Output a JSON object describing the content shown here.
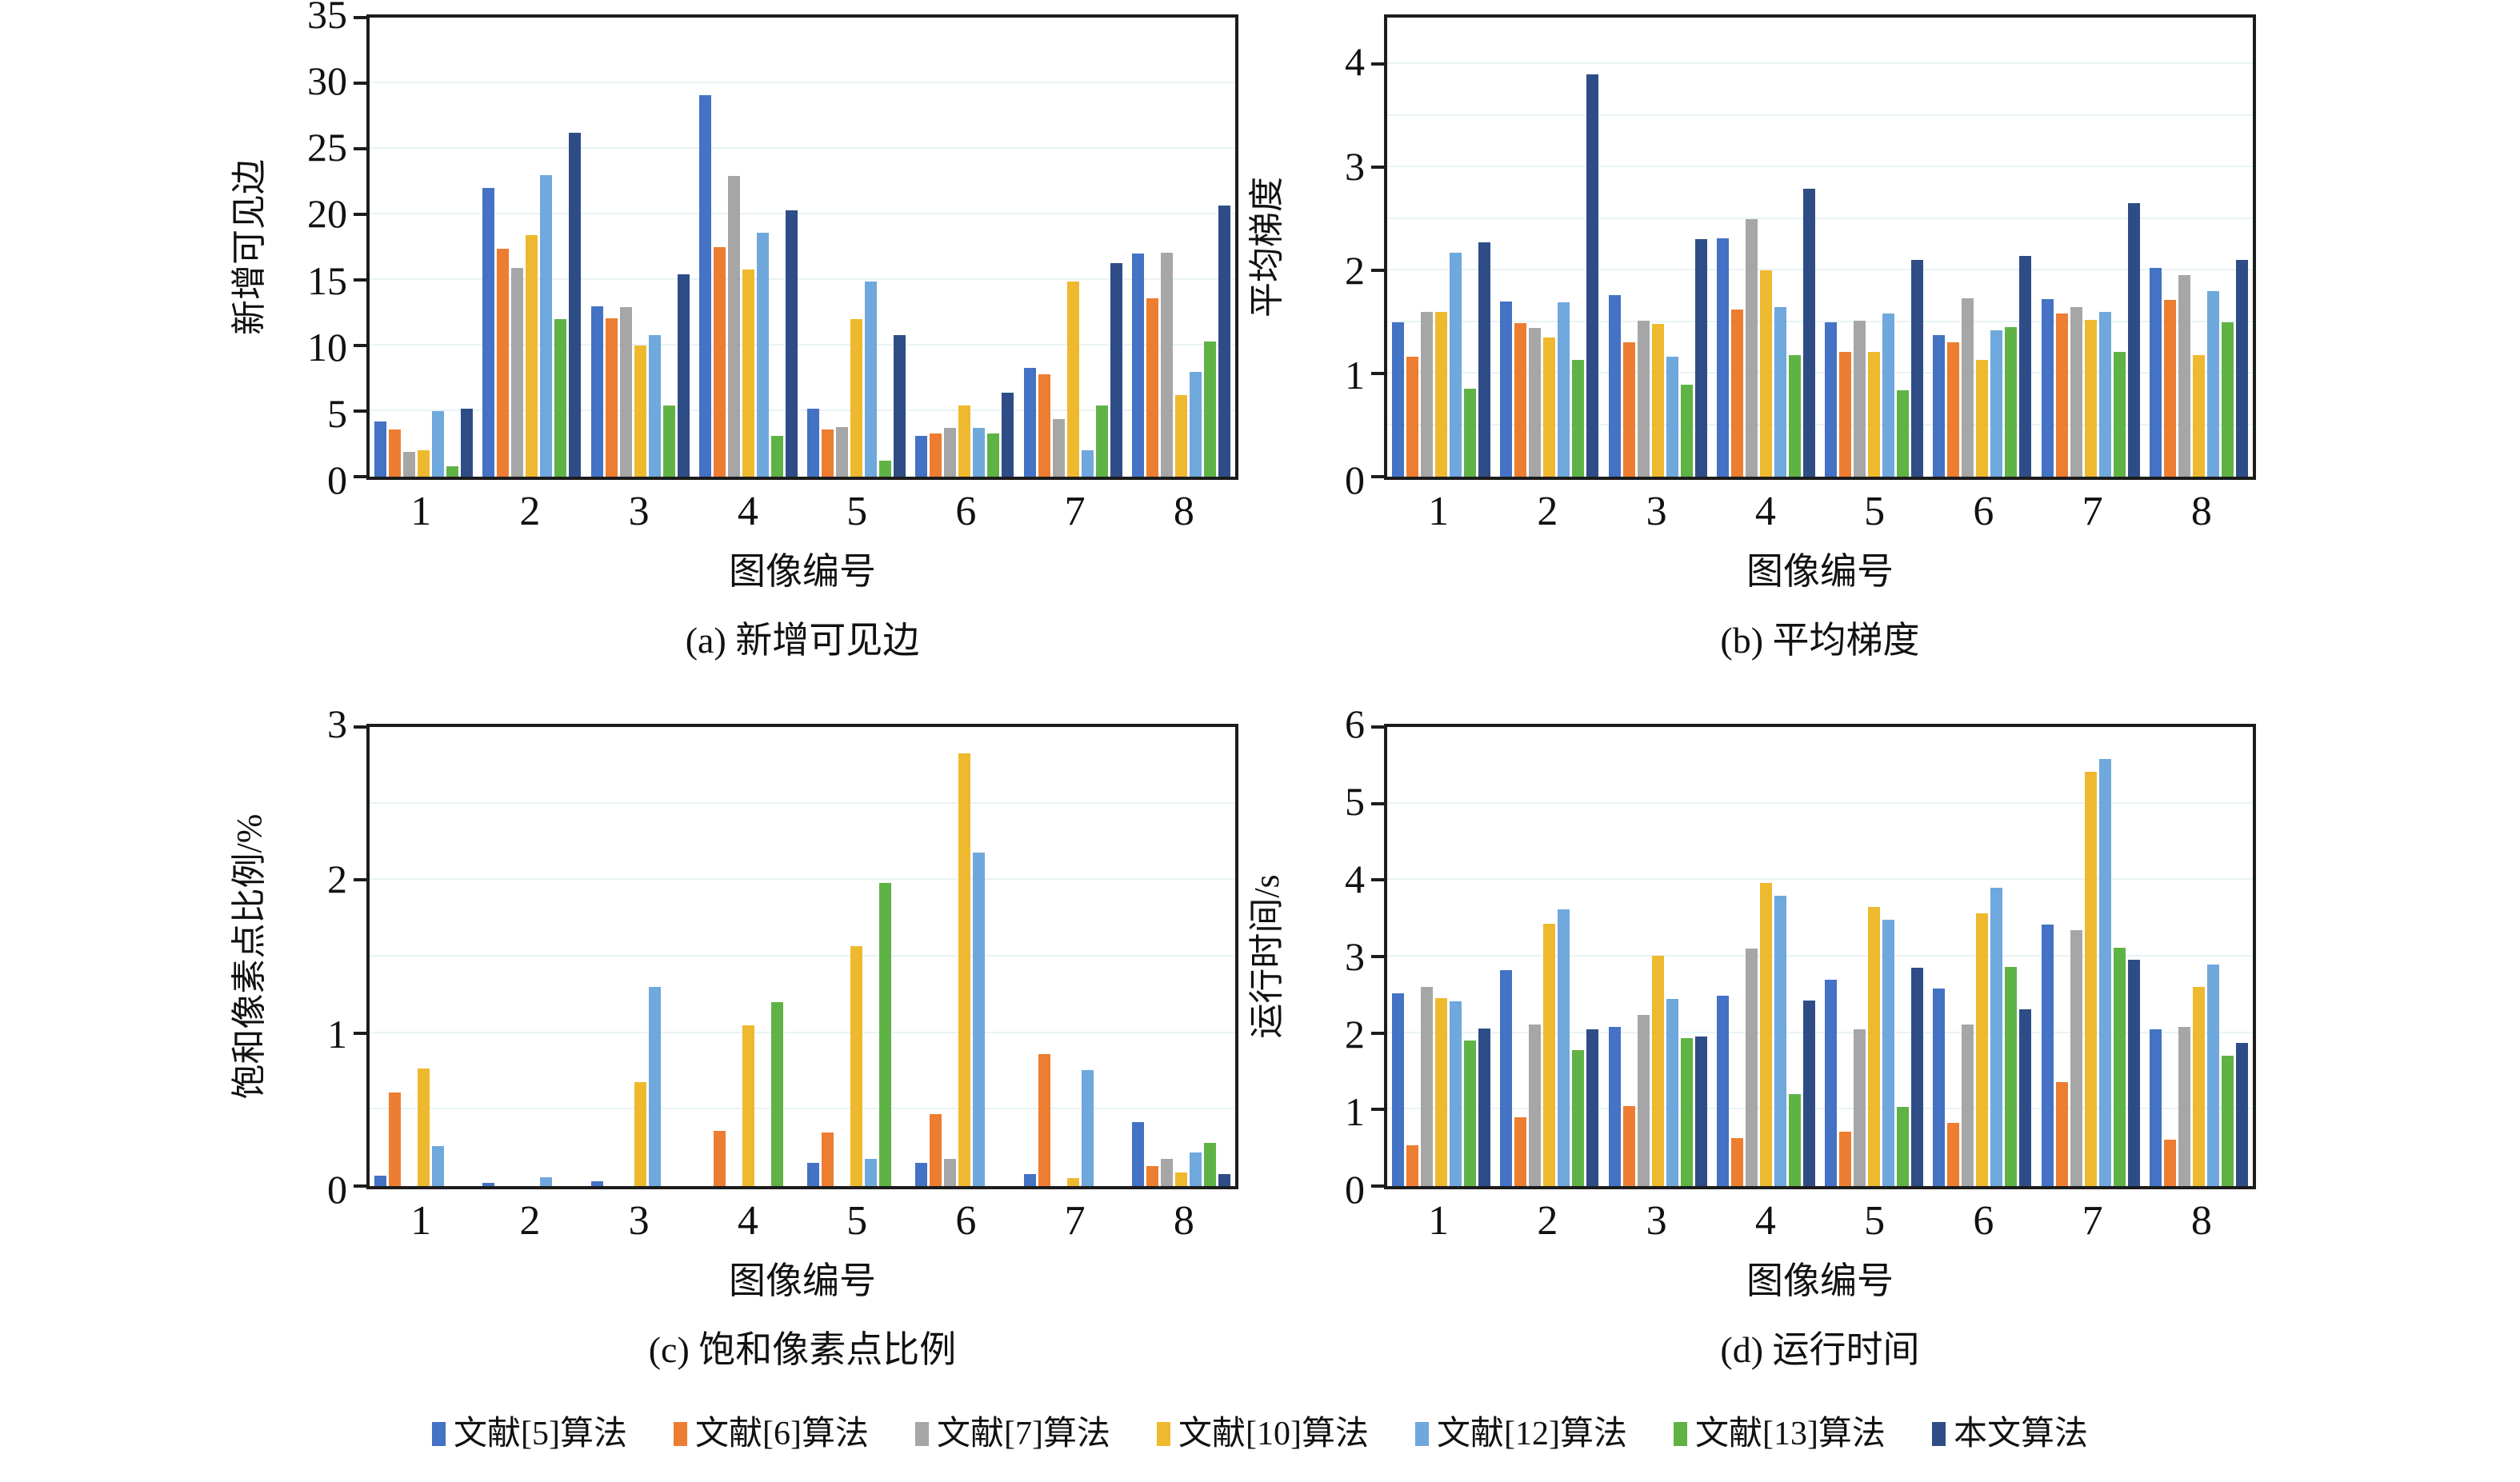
{
  "figure": {
    "background": "#ffffff",
    "axis_color": "#1c1c1c",
    "grid_color": "#e8f3f6"
  },
  "legend": {
    "position": "bottom-center",
    "items": [
      {
        "label": "文献[5]算法",
        "color": "#4472C4"
      },
      {
        "label": "文献[6]算法",
        "color": "#ED7D31"
      },
      {
        "label": "文献[7]算法",
        "color": "#A6A6A6"
      },
      {
        "label": "文献[10]算法",
        "color": "#EFB92F"
      },
      {
        "label": "文献[12]算法",
        "color": "#6FA8DC"
      },
      {
        "label": "文献[13]算法",
        "color": "#5FB345"
      },
      {
        "label": "本文算法",
        "color": "#2E4D87"
      }
    ]
  },
  "chart_data": [
    {
      "type": "bar",
      "panel": "a",
      "caption": "(a) 新增可见边",
      "ylabel": "新增可见边",
      "xlabel": "图像编号",
      "categories": [
        "1",
        "2",
        "3",
        "4",
        "5",
        "6",
        "7",
        "8"
      ],
      "ylim": [
        0,
        35
      ],
      "yticks": [
        0,
        5,
        10,
        15,
        20,
        25,
        30,
        35
      ],
      "grid_step": 5,
      "grid": true,
      "series": [
        {
          "name": "文献[5]算法",
          "values": [
            4.2,
            22.0,
            13.0,
            29.1,
            5.2,
            3.1,
            8.3,
            17.0
          ]
        },
        {
          "name": "文献[6]算法",
          "values": [
            3.6,
            17.4,
            12.1,
            17.5,
            3.6,
            3.3,
            7.8,
            13.6
          ]
        },
        {
          "name": "文献[7]算法",
          "values": [
            1.9,
            15.9,
            12.9,
            22.9,
            3.8,
            3.7,
            4.4,
            17.1
          ]
        },
        {
          "name": "文献[10]算法",
          "values": [
            2.0,
            18.4,
            10.0,
            15.8,
            12.0,
            5.4,
            14.9,
            6.2
          ]
        },
        {
          "name": "文献[12]算法",
          "values": [
            5.0,
            23.0,
            10.8,
            18.6,
            14.9,
            3.7,
            2.0,
            8.0
          ]
        },
        {
          "name": "文献[13]算法",
          "values": [
            0.8,
            12.0,
            5.4,
            3.1,
            1.2,
            3.3,
            5.4,
            10.3
          ]
        },
        {
          "name": "本文算法",
          "values": [
            5.2,
            26.2,
            15.4,
            20.3,
            10.8,
            6.4,
            16.3,
            20.7
          ]
        }
      ]
    },
    {
      "type": "bar",
      "panel": "b",
      "caption": "(b) 平均梯度",
      "ylabel": "平均梯度",
      "xlabel": "图像编号",
      "categories": [
        "1",
        "2",
        "3",
        "4",
        "5",
        "6",
        "7",
        "8"
      ],
      "ylim": [
        0,
        4.45
      ],
      "yticks": [
        0,
        1,
        2,
        3,
        4
      ],
      "grid_step": 0.5,
      "grid": true,
      "series": [
        {
          "name": "文献[5]算法",
          "values": [
            1.5,
            1.7,
            1.76,
            2.31,
            1.5,
            1.37,
            1.72,
            2.02
          ]
        },
        {
          "name": "文献[6]算法",
          "values": [
            1.16,
            1.49,
            1.3,
            1.62,
            1.21,
            1.3,
            1.58,
            1.71
          ]
        },
        {
          "name": "文献[7]算法",
          "values": [
            1.6,
            1.44,
            1.51,
            2.5,
            1.51,
            1.73,
            1.64,
            1.95
          ]
        },
        {
          "name": "文献[10]算法",
          "values": [
            1.6,
            1.35,
            1.48,
            2.0,
            1.21,
            1.13,
            1.52,
            1.18
          ]
        },
        {
          "name": "文献[12]算法",
          "values": [
            2.17,
            1.69,
            1.16,
            1.64,
            1.58,
            1.42,
            1.6,
            1.8
          ]
        },
        {
          "name": "文献[13]算法",
          "values": [
            0.85,
            1.13,
            0.89,
            1.18,
            0.84,
            1.45,
            1.21,
            1.5
          ]
        },
        {
          "name": "本文算法",
          "values": [
            2.27,
            3.9,
            2.3,
            2.79,
            2.1,
            2.14,
            2.65,
            2.1
          ]
        }
      ]
    },
    {
      "type": "bar",
      "panel": "c",
      "caption": "(c) 饱和像素点比例",
      "ylabel": "饱和像素点比例/%",
      "xlabel": "图像编号",
      "categories": [
        "1",
        "2",
        "3",
        "4",
        "5",
        "6",
        "7",
        "8"
      ],
      "ylim": [
        0,
        3
      ],
      "yticks": [
        0,
        1,
        2,
        3
      ],
      "grid_step": 0.5,
      "grid": true,
      "series": [
        {
          "name": "文献[5]算法",
          "values": [
            0.07,
            0.02,
            0.03,
            0.0,
            0.15,
            0.15,
            0.08,
            0.42
          ]
        },
        {
          "name": "文献[6]算法",
          "values": [
            0.61,
            0.0,
            0.0,
            0.36,
            0.35,
            0.47,
            0.86,
            0.13
          ]
        },
        {
          "name": "文献[7]算法",
          "values": [
            0.0,
            0.0,
            0.0,
            0.0,
            0.0,
            0.18,
            0.0,
            0.18
          ]
        },
        {
          "name": "文献[10]算法",
          "values": [
            0.77,
            0.0,
            0.68,
            1.05,
            1.57,
            2.83,
            0.05,
            0.09
          ]
        },
        {
          "name": "文献[12]算法",
          "values": [
            0.26,
            0.06,
            1.3,
            0.0,
            0.18,
            2.18,
            0.76,
            0.22
          ]
        },
        {
          "name": "文献[13]算法",
          "values": [
            0.0,
            0.0,
            0.0,
            1.2,
            1.98,
            0.0,
            0.0,
            0.28
          ]
        },
        {
          "name": "本文算法",
          "values": [
            0.0,
            0.0,
            0.0,
            0.0,
            0.0,
            0.0,
            0.0,
            0.08
          ]
        }
      ]
    },
    {
      "type": "bar",
      "panel": "d",
      "caption": "(d) 运行时间",
      "ylabel": "运行时间/s",
      "xlabel": "图像编号",
      "categories": [
        "1",
        "2",
        "3",
        "4",
        "5",
        "6",
        "7",
        "8"
      ],
      "ylim": [
        0,
        6
      ],
      "yticks": [
        0,
        1,
        2,
        3,
        4,
        5,
        6
      ],
      "grid_step": 1,
      "grid": true,
      "series": [
        {
          "name": "文献[5]算法",
          "values": [
            2.52,
            2.82,
            2.08,
            2.49,
            2.7,
            2.58,
            3.42,
            2.05
          ]
        },
        {
          "name": "文献[6]算法",
          "values": [
            0.53,
            0.9,
            1.05,
            0.63,
            0.71,
            0.83,
            1.36,
            0.61
          ]
        },
        {
          "name": "文献[7]算法",
          "values": [
            2.6,
            2.11,
            2.24,
            3.1,
            2.05,
            2.11,
            3.34,
            2.08
          ]
        },
        {
          "name": "文献[10]算法",
          "values": [
            2.46,
            3.43,
            3.01,
            3.96,
            3.65,
            3.56,
            5.42,
            2.6
          ]
        },
        {
          "name": "文献[12]算法",
          "values": [
            2.42,
            3.62,
            2.45,
            3.79,
            3.48,
            3.9,
            5.58,
            2.9
          ]
        },
        {
          "name": "文献[13]算法",
          "values": [
            1.9,
            1.78,
            1.93,
            1.2,
            1.03,
            2.86,
            3.12,
            1.7
          ]
        },
        {
          "name": "本文算法",
          "values": [
            2.06,
            2.05,
            1.95,
            2.43,
            2.85,
            2.31,
            2.96,
            1.87
          ]
        }
      ]
    }
  ]
}
